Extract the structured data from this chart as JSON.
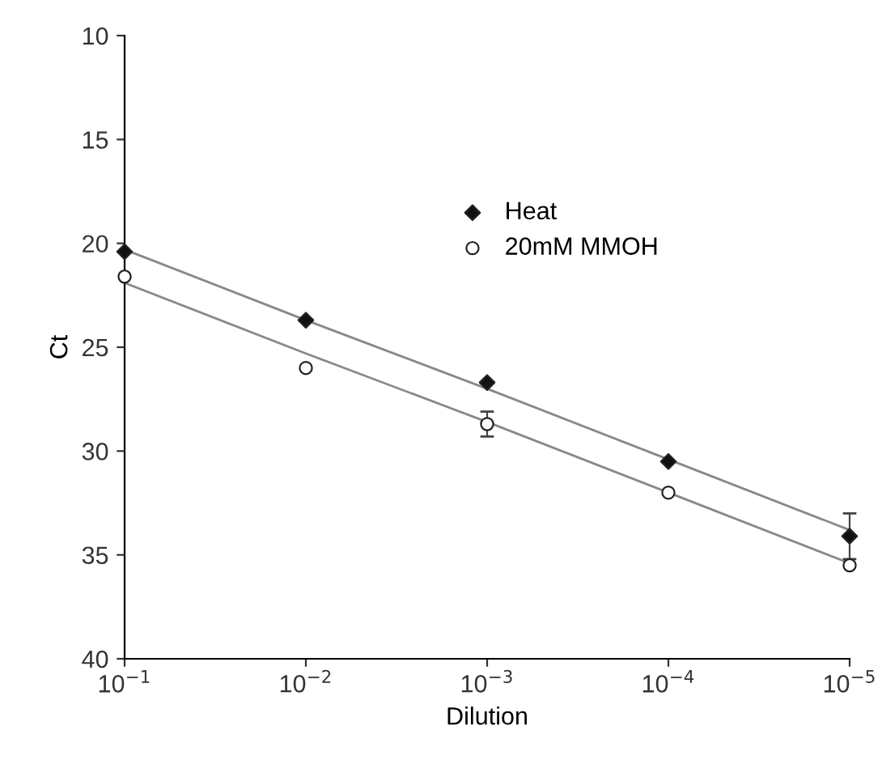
{
  "chart_data": {
    "type": "scatter",
    "xlabel": "Dilution",
    "ylabel": "Ct",
    "log": "x",
    "grid": false,
    "legend": "top right",
    "x": [
      0.1,
      0.01,
      0.001,
      0.0001,
      1e-05
    ],
    "xlim": [
      0.1,
      1e-05
    ],
    "xticks": [
      {
        "value": 0.1,
        "label": "10$^{−1}$"
      },
      {
        "value": 0.01,
        "label": "10$^{−2}$"
      },
      {
        "value": 0.001,
        "label": "10$^{−3}$"
      },
      {
        "value": 0.0001,
        "label": "10$^{−4}$"
      },
      {
        "value": 1e-05,
        "label": "10$^{−5}$"
      }
    ],
    "ylim": [
      40,
      10
    ],
    "yticks": [
      10,
      15,
      20,
      25,
      30,
      35,
      40
    ],
    "series": [
      {
        "name": "Heat",
        "color": "#111111",
        "marker": "diamond",
        "values": [
          20.4,
          23.7,
          26.7,
          30.5,
          34.1
        ],
        "errors": [
          null,
          null,
          null,
          null,
          1.1
        ]
      },
      {
        "name": "20mM MMOH",
        "color": "#ffffff",
        "marker": "circle",
        "values": [
          21.6,
          26.0,
          28.7,
          32.0,
          35.5
        ],
        "errors": [
          null,
          null,
          0.6,
          null,
          null
        ]
      },
      {
        "type": "line",
        "color": "#888888",
        "marker": "none",
        "values": [
          20.3,
          23.7,
          27.0,
          30.4,
          33.8
        ]
      },
      {
        "type": "line",
        "color": "#888888",
        "marker": "none",
        "values": [
          21.9,
          25.3,
          28.6,
          32.0,
          35.4
        ]
      }
    ]
  }
}
